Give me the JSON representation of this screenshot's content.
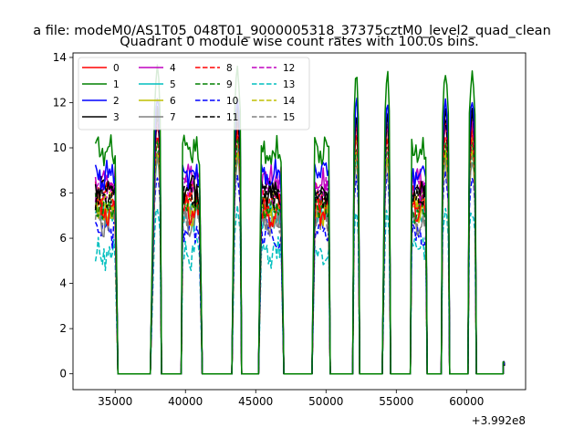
{
  "figure": {
    "suptitle": "a file: modeM0/AS1T05_048T01_9000005318_37375cztM0_level2_quad_clean",
    "title": "Quadrant 0 module wise count rates with 100.0s bins.",
    "x_offset_label": "+3.992e8"
  },
  "chart_data": {
    "type": "line",
    "title": "Quadrant 0 module wise count rates with 100.0s bins.",
    "xlabel": "",
    "ylabel": "",
    "x_offset": 399200000,
    "xlim": [
      32000,
      64200
    ],
    "ylim": [
      -0.7,
      14.2
    ],
    "xticks": [
      35000,
      40000,
      45000,
      50000,
      55000,
      60000
    ],
    "xtick_labels": [
      "35000",
      "40000",
      "45000",
      "50000",
      "55000",
      "60000"
    ],
    "yticks": [
      0,
      2,
      4,
      6,
      8,
      10,
      12,
      14
    ],
    "ytick_labels": [
      "0",
      "2",
      "4",
      "6",
      "8",
      "10",
      "12",
      "14"
    ],
    "grid": false,
    "legend_position": "upper-left",
    "legend_columns": 4,
    "gaps": [
      [
        35200,
        37500
      ],
      [
        38300,
        39700
      ],
      [
        41200,
        43300
      ],
      [
        44000,
        45200
      ],
      [
        47000,
        49000
      ],
      [
        50300,
        51900
      ],
      [
        52400,
        54000
      ],
      [
        54600,
        56000
      ],
      [
        57200,
        58200
      ],
      [
        58800,
        60100
      ],
      [
        60700,
        62600
      ]
    ],
    "segments": [
      {
        "start": 33600,
        "end": 35000,
        "shape": "flat"
      },
      {
        "start": 37800,
        "end": 38200,
        "shape": "peak"
      },
      {
        "start": 39800,
        "end": 41000,
        "shape": "flat"
      },
      {
        "start": 43500,
        "end": 43900,
        "shape": "peak"
      },
      {
        "start": 45400,
        "end": 46800,
        "shape": "flat"
      },
      {
        "start": 49200,
        "end": 50200,
        "shape": "flat"
      },
      {
        "start": 52000,
        "end": 52300,
        "shape": "peak"
      },
      {
        "start": 54200,
        "end": 54500,
        "shape": "peak"
      },
      {
        "start": 56100,
        "end": 57100,
        "shape": "flat"
      },
      {
        "start": 58300,
        "end": 58700,
        "shape": "peak"
      },
      {
        "start": 60200,
        "end": 60600,
        "shape": "peak"
      },
      {
        "start": 62600,
        "end": 62700,
        "shape": "edge"
      }
    ],
    "series": [
      {
        "name": "0",
        "color": "#ff0000",
        "dash": "solid",
        "level": 7.2,
        "peak": 11.0
      },
      {
        "name": "1",
        "color": "#008000",
        "dash": "solid",
        "level": 9.8,
        "peak": 13.4
      },
      {
        "name": "2",
        "color": "#0000ff",
        "dash": "solid",
        "level": 8.8,
        "peak": 12.2
      },
      {
        "name": "3",
        "color": "#000000",
        "dash": "solid",
        "level": 8.1,
        "peak": 11.6
      },
      {
        "name": "4",
        "color": "#bf00bf",
        "dash": "solid",
        "level": 8.6,
        "peak": 11.2
      },
      {
        "name": "5",
        "color": "#00bfbf",
        "dash": "solid",
        "level": 7.0,
        "peak": 9.6
      },
      {
        "name": "6",
        "color": "#bfbf00",
        "dash": "solid",
        "level": 7.2,
        "peak": 9.8
      },
      {
        "name": "7",
        "color": "#808080",
        "dash": "solid",
        "level": 6.8,
        "peak": 9.4
      },
      {
        "name": "8",
        "color": "#ff0000",
        "dash": "dashed",
        "level": 7.8,
        "peak": 10.6
      },
      {
        "name": "9",
        "color": "#008000",
        "dash": "dashed",
        "level": 7.4,
        "peak": 10.2
      },
      {
        "name": "10",
        "color": "#0000ff",
        "dash": "dashed",
        "level": 6.3,
        "peak": 8.8
      },
      {
        "name": "11",
        "color": "#000000",
        "dash": "dashed",
        "level": 8.0,
        "peak": 11.4
      },
      {
        "name": "12",
        "color": "#bf00bf",
        "dash": "dashed",
        "level": 8.2,
        "peak": 11.3
      },
      {
        "name": "13",
        "color": "#00bfbf",
        "dash": "dashed",
        "level": 5.3,
        "peak": 7.2
      },
      {
        "name": "14",
        "color": "#bfbf00",
        "dash": "dashed",
        "level": 7.6,
        "peak": 10.4
      },
      {
        "name": "15",
        "color": "#808080",
        "dash": "dashed",
        "level": 7.0,
        "peak": 9.8
      }
    ]
  }
}
